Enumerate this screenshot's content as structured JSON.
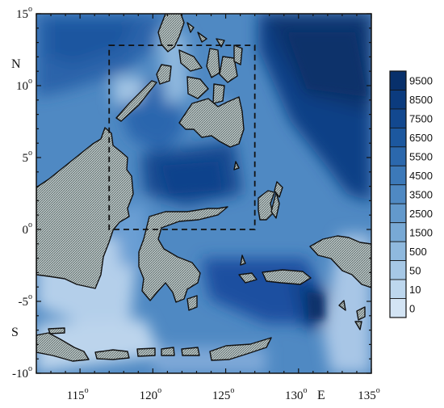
{
  "map": {
    "x_ticks": [
      {
        "value": 115,
        "label": "115",
        "deg": "o"
      },
      {
        "value": 120,
        "label": "120",
        "deg": "o"
      },
      {
        "value": 125,
        "label": "125",
        "deg": "o"
      },
      {
        "value": 130,
        "label": "130",
        "deg": "o"
      },
      {
        "value": 135,
        "label": "135",
        "deg": "o"
      }
    ],
    "y_ticks": [
      {
        "value": 15,
        "label": "15",
        "deg": "o"
      },
      {
        "value": 10,
        "label": "10",
        "deg": "o"
      },
      {
        "value": 5,
        "label": "5",
        "deg": "o"
      },
      {
        "value": 0,
        "label": "0",
        "deg": "o"
      },
      {
        "value": -5,
        "label": "-5",
        "deg": "o"
      },
      {
        "value": -10,
        "label": "-10",
        "deg": "o"
      }
    ],
    "east_label": "E",
    "north_label": "N",
    "south_label": "S",
    "lon_range": [
      112,
      135
    ],
    "lat_range": [
      -10,
      15
    ],
    "study_box": {
      "lon": [
        117,
        127
      ],
      "lat": [
        0,
        12.8
      ]
    }
  },
  "colorbar": {
    "labels": [
      "9500",
      "8500",
      "7500",
      "6500",
      "5500",
      "4500",
      "3500",
      "2500",
      "1500",
      "500",
      "50",
      "10",
      "0"
    ],
    "colors": [
      "#08306b",
      "#0b3b7e",
      "#12488f",
      "#1c589f",
      "#2b68ad",
      "#3c79b9",
      "#4f89c3",
      "#6399cc",
      "#78a9d5",
      "#8fb9de",
      "#a6c8e6",
      "#bdd7ee",
      "#d3e4f4"
    ]
  },
  "colors": {
    "deep": "#0d3f86",
    "mid": "#2f6fb6",
    "shallow": "#8fb8de",
    "shelf": "#bcd4ec",
    "land": "#b8c4c4"
  }
}
